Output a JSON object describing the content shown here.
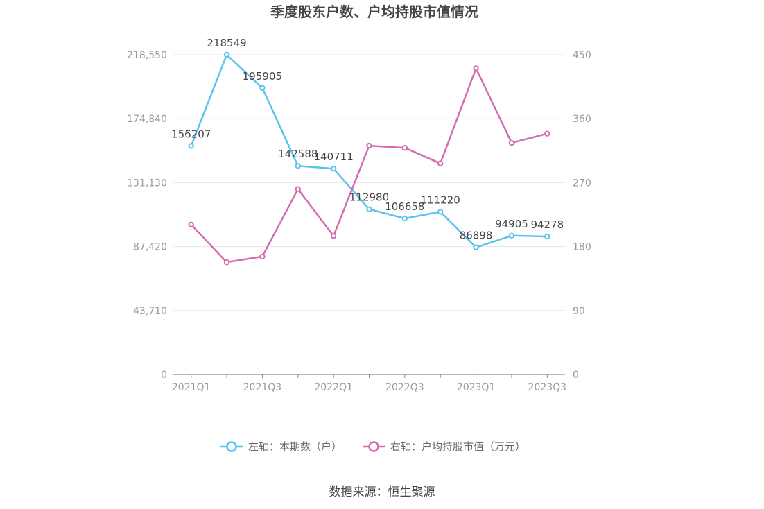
{
  "chart_data": {
    "type": "line",
    "title": "季度股东户数、户均持股市值情况",
    "categories": [
      "2021Q1",
      "2021Q2",
      "2021Q3",
      "2021Q4",
      "2022Q1",
      "2022Q2",
      "2022Q3",
      "2022Q4",
      "2023Q1",
      "2023Q2",
      "2023Q3"
    ],
    "x_tick_labels": [
      "2021Q1",
      "2021Q3",
      "2022Q1",
      "2022Q3",
      "2023Q1",
      "2023Q3"
    ],
    "left_axis": {
      "range": [
        0,
        218550
      ],
      "tick_values": [
        0,
        43710,
        87420,
        131130,
        174840,
        218550
      ],
      "tick_labels": [
        "0",
        "43,710",
        "87,420",
        "131,130",
        "174,840",
        "218,550"
      ]
    },
    "right_axis": {
      "range": [
        0,
        450
      ],
      "tick_values": [
        0,
        90,
        180,
        270,
        360,
        450
      ],
      "tick_labels": [
        "0",
        "90",
        "180",
        "270",
        "360",
        "450"
      ]
    },
    "grid": true,
    "legend_position": "bottom",
    "series": [
      {
        "name": "左轴：本期数（户）",
        "axis": "left",
        "color": "#5bc2f0",
        "values": [
          156207,
          218549,
          195905,
          142588,
          140711,
          112980,
          106658,
          111220,
          86898,
          94905,
          94278
        ],
        "labels": [
          "156207",
          "218549",
          "195905",
          "142588",
          "140711",
          "112980",
          "106658",
          "111220",
          "86898",
          "94905",
          "94278"
        ]
      },
      {
        "name": "右轴：户均持股市值（万元）",
        "axis": "right",
        "color": "#d46bb0",
        "values": [
          211,
          158,
          166,
          261,
          195,
          322,
          319,
          297,
          431,
          326,
          339
        ]
      }
    ],
    "source": "数据来源：恒生聚源"
  }
}
